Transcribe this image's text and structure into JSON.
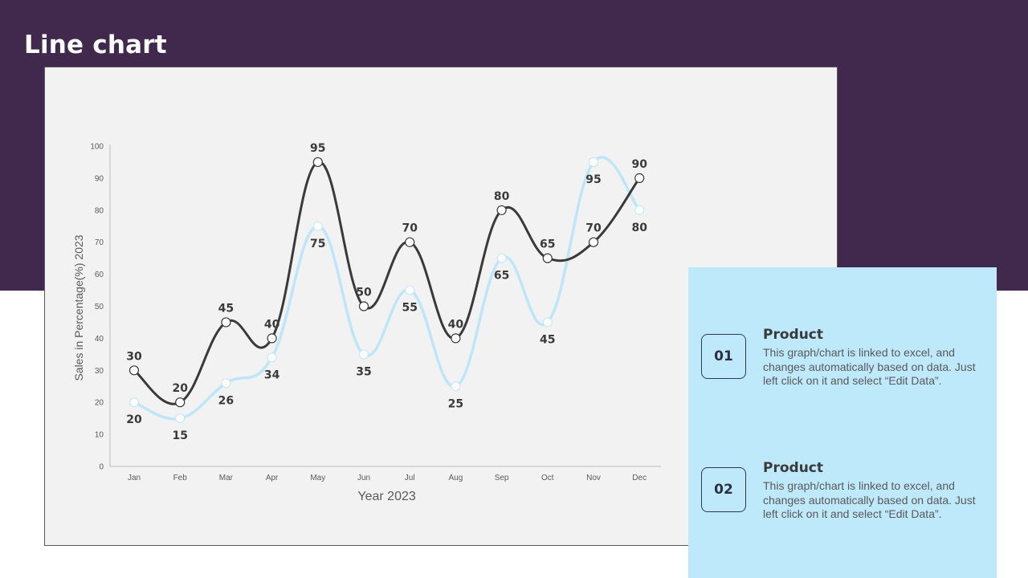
{
  "page": {
    "title": "Line chart"
  },
  "info_items": [
    {
      "number": "01",
      "title": "Product",
      "description": "This graph/chart is linked to excel, and changes automatically based on data. Just left click on it and select “Edit Data”."
    },
    {
      "number": "02",
      "title": "Product",
      "description": "This graph/chart is linked to excel, and changes automatically based on data. Just left click on it and select “Edit Data”."
    }
  ],
  "colors": {
    "header": "#40294c",
    "panel": "#f2f2f2",
    "info_panel": "#bee9fb",
    "series_dark": "#3a3a3a",
    "series_light": "#bfe6f8"
  },
  "chart_data": {
    "type": "line",
    "title": "",
    "xlabel": "Year 2023",
    "ylabel": "Sales in Percentage(%) 2023",
    "categories": [
      "Jan",
      "Feb",
      "Mar",
      "Apr",
      "May",
      "Jun",
      "Jul",
      "Aug",
      "Sep",
      "Oct",
      "Nov",
      "Dec"
    ],
    "ylim": [
      0,
      100
    ],
    "yticks": [
      "0",
      "10",
      "20",
      "30",
      "40",
      "50",
      "60",
      "70",
      "80",
      "90",
      "100"
    ],
    "smooth": true,
    "grid": false,
    "legend": "none",
    "data_labels": true,
    "series": [
      {
        "values": [
          30,
          20,
          45,
          40,
          95,
          50,
          70,
          40,
          80,
          65,
          70,
          90
        ],
        "color": "#3a3a3a",
        "label_position": "above"
      },
      {
        "values": [
          20,
          15,
          26,
          34,
          75,
          35,
          55,
          25,
          65,
          45,
          95,
          80
        ],
        "color": "#bfe6f8",
        "label_position": "below"
      }
    ]
  }
}
